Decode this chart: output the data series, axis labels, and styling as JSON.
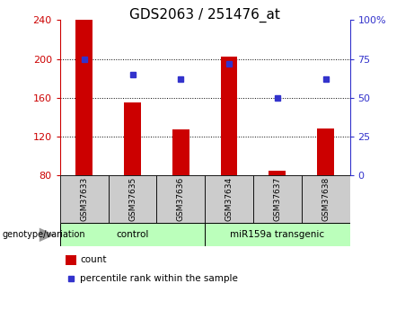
{
  "title": "GDS2063 / 251476_at",
  "samples": [
    "GSM37633",
    "GSM37635",
    "GSM37636",
    "GSM37634",
    "GSM37637",
    "GSM37638"
  ],
  "counts": [
    240,
    155,
    127,
    202,
    85,
    128
  ],
  "percentiles": [
    75,
    65,
    62,
    72,
    50,
    62
  ],
  "ylim_left": [
    80,
    240
  ],
  "ylim_right": [
    0,
    100
  ],
  "yticks_left": [
    80,
    120,
    160,
    200,
    240
  ],
  "yticks_right": [
    0,
    25,
    50,
    75,
    100
  ],
  "ytick_labels_right": [
    "0",
    "25",
    "50",
    "75",
    "100%"
  ],
  "bar_color": "#cc0000",
  "dot_color": "#3333cc",
  "bar_bottom": 80,
  "groups": [
    {
      "label": "control",
      "indices": [
        0,
        1,
        2
      ],
      "color": "#bbffbb"
    },
    {
      "label": "miR159a transgenic",
      "indices": [
        3,
        4,
        5
      ],
      "color": "#bbffbb"
    }
  ],
  "group_label_left": "genotype/variation",
  "legend_count": "count",
  "legend_percentile": "percentile rank within the sample",
  "title_fontsize": 11,
  "axis_color_left": "#cc0000",
  "axis_color_right": "#3333cc",
  "grid_color": "#000000",
  "label_box_color": "#cccccc",
  "bar_width": 0.35
}
